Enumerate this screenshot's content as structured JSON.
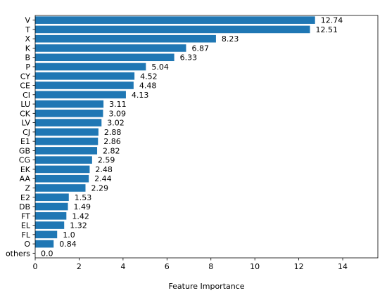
{
  "chart_data": {
    "type": "bar",
    "orientation": "horizontal",
    "title": "",
    "xlabel": "Feature Importance",
    "ylabel": "",
    "xlim": [
      0,
      15.6
    ],
    "xticks": [
      0,
      2,
      4,
      6,
      8,
      10,
      12,
      14
    ],
    "grid": false,
    "bar_color": "#1f77b4",
    "categories": [
      "V",
      "T",
      "X",
      "K",
      "B",
      "P",
      "CY",
      "CE",
      "CI",
      "LU",
      "CK",
      "LV",
      "CJ",
      "E1",
      "GB",
      "CG",
      "EK",
      "AA",
      "Z",
      "E2",
      "DB",
      "FT",
      "EL",
      "FL",
      "O",
      "others"
    ],
    "values": [
      12.74,
      12.51,
      8.23,
      6.87,
      6.33,
      5.04,
      4.52,
      4.48,
      4.13,
      3.11,
      3.09,
      3.02,
      2.88,
      2.86,
      2.82,
      2.59,
      2.48,
      2.44,
      2.29,
      1.53,
      1.49,
      1.42,
      1.32,
      1.0,
      0.84,
      0.0
    ],
    "value_labels": [
      "12.74",
      "12.51",
      "8.23",
      "6.87",
      "6.33",
      "5.04",
      "4.52",
      "4.48",
      "4.13",
      "3.11",
      "3.09",
      "3.02",
      "2.88",
      "2.86",
      "2.82",
      "2.59",
      "2.48",
      "2.44",
      "2.29",
      "1.53",
      "1.49",
      "1.42",
      "1.32",
      "1.0",
      "0.84",
      "0.0"
    ]
  }
}
